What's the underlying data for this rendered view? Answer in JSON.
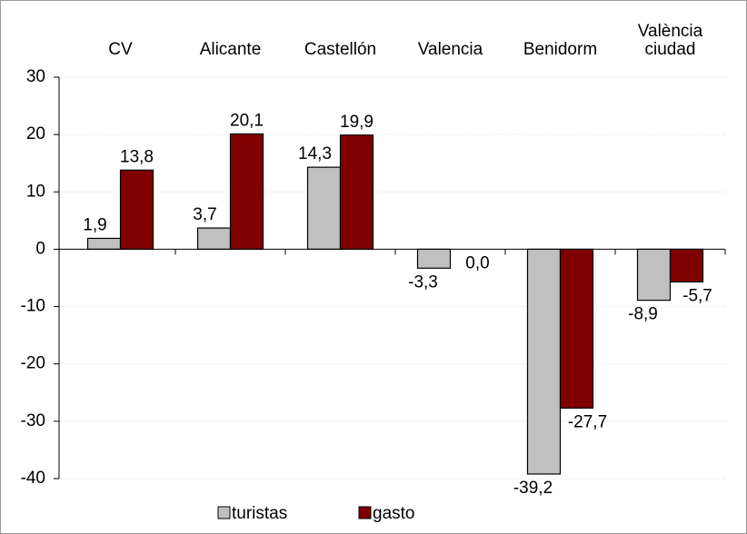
{
  "chart_data": {
    "type": "bar",
    "categories": [
      "CV",
      "Alicante",
      "Castellón",
      "Valencia",
      "Benidorm",
      "València ciudad"
    ],
    "series": [
      {
        "name": "turistas",
        "color": "#c0c0c0",
        "values": [
          1.9,
          3.7,
          14.3,
          -3.3,
          -39.2,
          -8.9
        ],
        "value_labels": [
          "1,9",
          "3,7",
          "14,3",
          "-3,3",
          "-39,2",
          "-8,9"
        ]
      },
      {
        "name": "gasto",
        "color": "#800000",
        "values": [
          13.8,
          20.1,
          19.9,
          0.0,
          -27.7,
          -5.7
        ],
        "value_labels": [
          "13,8",
          "20,1",
          "19,9",
          "0,0",
          "-27,7",
          "-5,7"
        ]
      }
    ],
    "ylim": [
      -40,
      30
    ],
    "yticks": [
      -40,
      -30,
      -20,
      -10,
      0,
      10,
      20,
      30
    ],
    "grid": true,
    "legend": "bottom"
  }
}
